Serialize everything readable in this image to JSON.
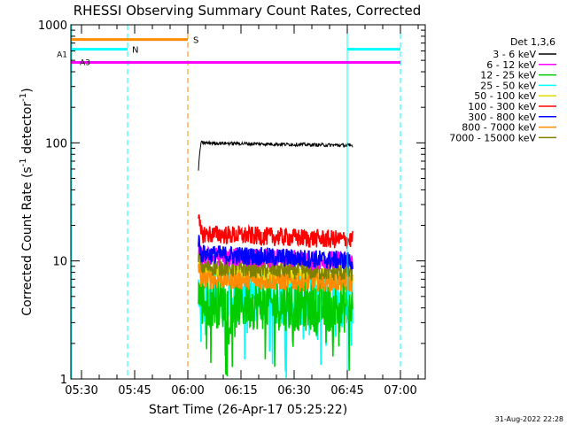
{
  "chart_data": {
    "type": "line",
    "title": "RHESSI Observing Summary Count Rates, Corrected",
    "xlabel": "Start Time (26-Apr-17 05:25:22)",
    "ylabel": "Corrected Count Rate (s⁻¹ detector⁻¹)",
    "ylabel_main": "Corrected Count Rate (s",
    "ylabel_sup1": "-1",
    "ylabel_mid": " detector",
    "ylabel_sup2": "-1",
    "ylabel_end": ")",
    "y_scale": "log",
    "ylim": [
      1,
      1000
    ],
    "yticks": [
      {
        "value": 1,
        "label": "1"
      },
      {
        "value": 10,
        "label": "10"
      },
      {
        "value": 100,
        "label": "100"
      },
      {
        "value": 1000,
        "label": "1000"
      }
    ],
    "xlim_minutes": [
      -3,
      97
    ],
    "xticks": [
      {
        "minute": 0,
        "label": "05:30"
      },
      {
        "minute": 15,
        "label": "05:45"
      },
      {
        "minute": 30,
        "label": "06:00"
      },
      {
        "minute": 45,
        "label": "06:15"
      },
      {
        "minute": 60,
        "label": "06:30"
      },
      {
        "minute": 75,
        "label": "06:45"
      },
      {
        "minute": 90,
        "label": "07:00"
      }
    ],
    "legend": {
      "title": "Det 1,3,6",
      "placement": "right"
    },
    "data_start_minute": 33,
    "data_end_minute": 76.5,
    "series": [
      {
        "name": "3 - 6 keV",
        "color": "#000000",
        "level": 100,
        "end_level": 95
      },
      {
        "name": "6 - 12 keV",
        "color": "#ff00ff",
        "level": 11,
        "end_level": 10
      },
      {
        "name": "12 - 25 keV",
        "color": "#00cc00",
        "level": 4.5,
        "end_level": 4
      },
      {
        "name": "25 - 50 keV",
        "color": "#00ffff",
        "level": 5,
        "end_level": 4.5
      },
      {
        "name": "50 - 100 keV",
        "color": "#dddd00",
        "level": 8,
        "end_level": 7
      },
      {
        "name": "100 - 300 keV",
        "color": "#ff0000",
        "level": 17,
        "end_level": 15
      },
      {
        "name": "300 - 800 keV",
        "color": "#0000ff",
        "level": 11.5,
        "end_level": 10
      },
      {
        "name": "800 - 7000 keV",
        "color": "#ff8c00",
        "level": 7,
        "end_level": 6.5
      },
      {
        "name": "7000 - 15000 keV",
        "color": "#808000",
        "level": 9,
        "end_level": 8
      }
    ],
    "annotations": {
      "flags": [
        {
          "label": "S",
          "color": "#ff8c00",
          "level": 750,
          "start_minute": -3,
          "end_minute": 30
        },
        {
          "label": "N",
          "color": "#00ffff",
          "level": 620,
          "start_minute": -3,
          "end_minute": 13,
          "second_start_minute": 75,
          "second_end_minute": 90
        },
        {
          "label": "A1",
          "color": "#ff00ff",
          "level": 560
        },
        {
          "label": "A3",
          "color": "#ff00ff",
          "level": 480,
          "start_minute": -3,
          "end_minute": 90
        }
      ],
      "vertical_markers": [
        {
          "minute": -3,
          "color": "#00ffff",
          "style": "solid"
        },
        {
          "minute": 13,
          "color": "#00ffff",
          "style": "dashed"
        },
        {
          "minute": 30,
          "color": "#ff8c00",
          "style": "dashed"
        },
        {
          "minute": 75,
          "color": "#00ffff",
          "style": "solid"
        },
        {
          "minute": 90,
          "color": "#00ffff",
          "style": "dashed"
        }
      ]
    },
    "footer_date": "31-Aug-2022 22:28"
  }
}
